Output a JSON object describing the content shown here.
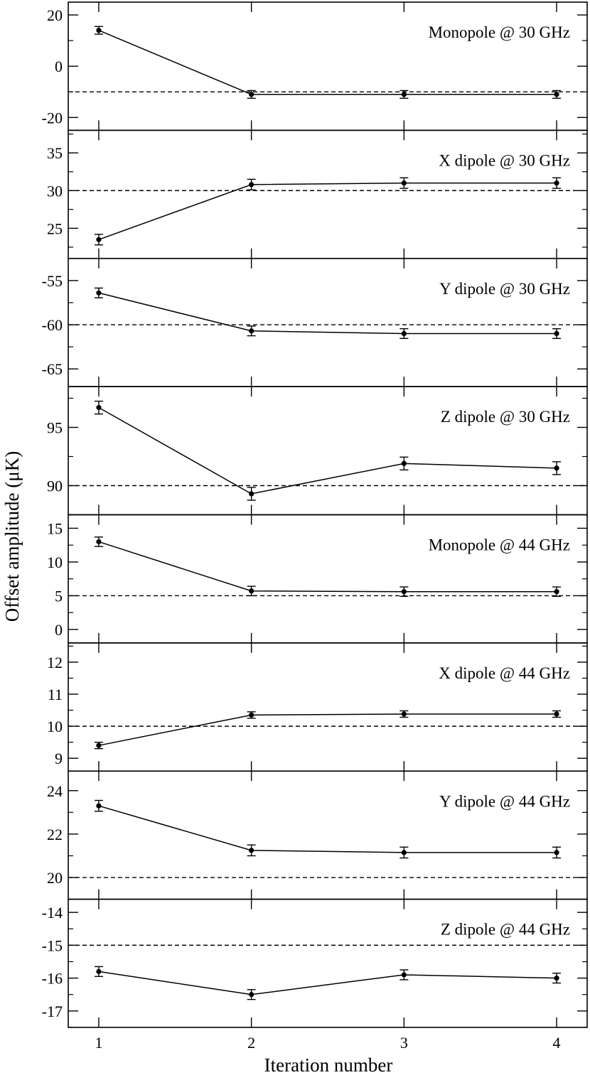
{
  "chart_data": {
    "type": "line",
    "x": [
      1,
      2,
      3,
      4
    ],
    "xlim": [
      0.8,
      4.2
    ],
    "xticks": [
      1,
      2,
      3,
      4
    ],
    "xlabel": "Iteration number",
    "ylabel": "Offset amplitude (μK)",
    "panels": [
      {
        "label": "Monopole @ 30 GHz",
        "ylim": [
          -25,
          25
        ],
        "yticks": [
          20,
          0,
          -20
        ],
        "reference": -10,
        "values": [
          14,
          -11,
          -11,
          -11
        ],
        "errors": [
          1.5,
          1.5,
          1.5,
          1.5
        ]
      },
      {
        "label": "X dipole @ 30 GHz",
        "ylim": [
          21,
          38
        ],
        "yticks": [
          35,
          30,
          25
        ],
        "reference": 30,
        "values": [
          23.5,
          30.8,
          31.0,
          31.0
        ],
        "errors": [
          0.7,
          0.7,
          0.7,
          0.7
        ]
      },
      {
        "label": "Y dipole @ 30 GHz",
        "ylim": [
          -67,
          -52.5
        ],
        "yticks": [
          -55,
          -60,
          -65
        ],
        "reference": -60,
        "values": [
          -56.4,
          -60.7,
          -61.0,
          -61.0
        ],
        "errors": [
          0.55,
          0.55,
          0.55,
          0.55
        ]
      },
      {
        "label": "Z dipole @ 30 GHz",
        "ylim": [
          87.5,
          98.5
        ],
        "yticks": [
          95,
          90
        ],
        "reference": 90,
        "values": [
          96.7,
          89.3,
          91.9,
          91.5
        ],
        "errors": [
          0.55,
          0.55,
          0.55,
          0.55
        ]
      },
      {
        "label": "Monopole @ 44 GHz",
        "ylim": [
          -2,
          17
        ],
        "yticks": [
          15,
          10,
          5,
          0
        ],
        "reference": 5,
        "values": [
          13,
          5.7,
          5.6,
          5.6
        ],
        "errors": [
          0.7,
          0.7,
          0.7,
          0.7
        ]
      },
      {
        "label": "X dipole @ 44 GHz",
        "ylim": [
          8.6,
          12.6
        ],
        "yticks": [
          12,
          11,
          10,
          9
        ],
        "reference": 10,
        "values": [
          9.4,
          10.35,
          10.38,
          10.38
        ],
        "errors": [
          0.1,
          0.1,
          0.1,
          0.1
        ]
      },
      {
        "label": "Y dipole @ 44 GHz",
        "ylim": [
          19,
          24.9
        ],
        "yticks": [
          24,
          22,
          20
        ],
        "reference": 20,
        "values": [
          23.3,
          21.25,
          21.15,
          21.15
        ],
        "errors": [
          0.25,
          0.25,
          0.25,
          0.25
        ]
      },
      {
        "label": "Z dipole @ 44 GHz",
        "ylim": [
          -17.5,
          -13.6
        ],
        "yticks": [
          -14,
          -15,
          -16,
          -17
        ],
        "reference": -15,
        "values": [
          -15.8,
          -16.5,
          -15.9,
          -16.0
        ],
        "errors": [
          0.15,
          0.15,
          0.15,
          0.15
        ]
      }
    ]
  }
}
